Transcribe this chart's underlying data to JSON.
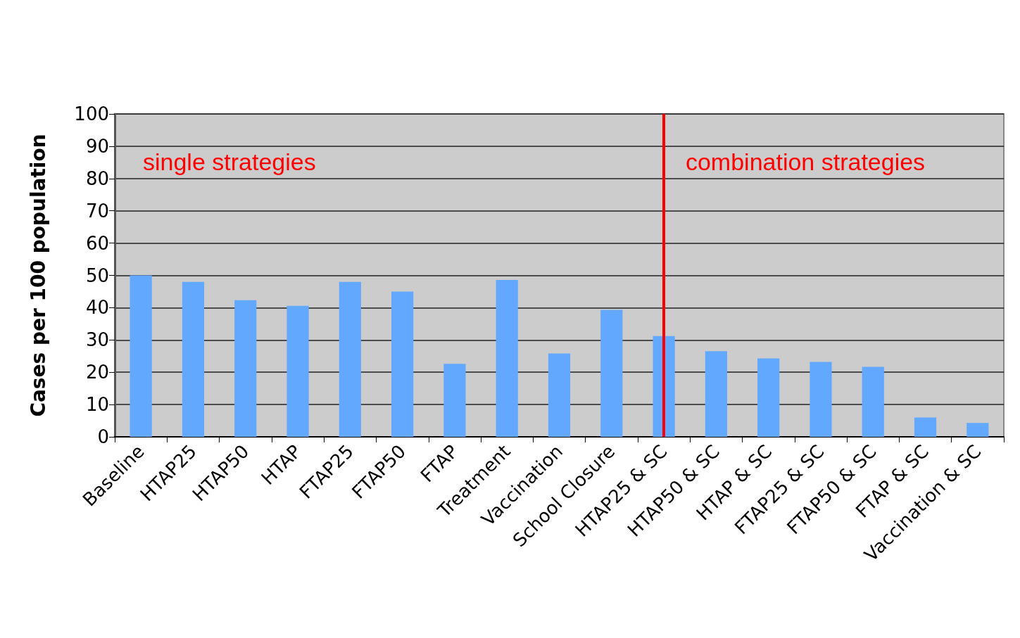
{
  "chart_data": {
    "type": "bar",
    "ylabel": "Cases per 100 population",
    "categories": [
      "Baseline",
      "HTAP25",
      "HTAP50",
      "HTAP",
      "FTAP25",
      "FTAP50",
      "FTAP",
      "Treatment",
      "Vaccination",
      "School Closure",
      "HTAP25 & SC",
      "HTAP50 & SC",
      "HTAP & SC",
      "FTAP25 & SC",
      "FTAP50 & SC",
      "FTAP & SC",
      "Vaccination & SC"
    ],
    "values": [
      50,
      48,
      42.3,
      40.6,
      48,
      45,
      22.6,
      48.6,
      25.8,
      39.3,
      31.2,
      26.5,
      24.3,
      23.2,
      21.7,
      6,
      4.3
    ],
    "color": "#62a8ff",
    "ylim": [
      0,
      100
    ],
    "yticks": [
      0,
      10,
      20,
      30,
      40,
      50,
      60,
      70,
      80,
      90,
      100
    ],
    "grid": "y",
    "ref_lines": [
      {
        "axis": "x",
        "value": "HTAP25 & SC",
        "color": "#ff0000"
      }
    ],
    "annotations": [
      "single strategies",
      "combination strategies"
    ]
  }
}
